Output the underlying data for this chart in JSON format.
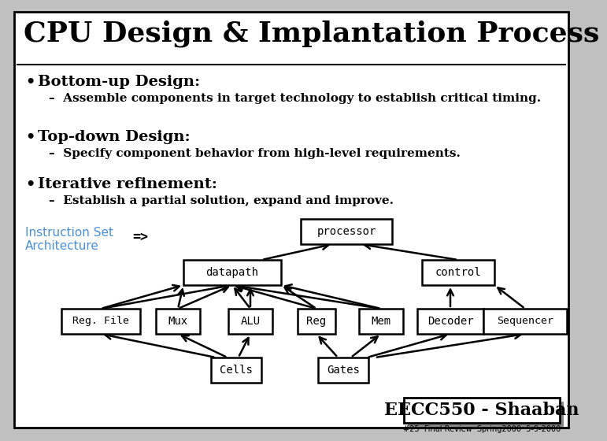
{
  "title": "CPU Design & Implantation Process",
  "bg_color": "#c0c0c0",
  "slide_bg": "#ffffff",
  "border_color": "#000000",
  "bullet_points": [
    {
      "bullet": "Bottom-up Design:",
      "sub": "Assemble components in target technology to establish critical timing."
    },
    {
      "bullet": "Top-down Design:",
      "sub": "Specify component behavior from high-level requirements."
    },
    {
      "bullet": "Iterative refinement:",
      "sub": "Establish a partial solution, expand and improve."
    }
  ],
  "isa_label": "Instruction Set\nArchitecture",
  "arrow_label": "=>",
  "isa_color": "#4a90d9",
  "node_labels": {
    "processor": "processor",
    "datapath": "datapath",
    "control": "control",
    "reg_file": "Reg. File",
    "mux": "Mux",
    "alu": "ALU",
    "reg": "Reg",
    "mem": "Mem",
    "decoder": "Decoder",
    "sequencer": "Sequencer",
    "cells": "Cells",
    "gates": "Gates"
  },
  "footer_text": "EECC550 - Shaaban",
  "footer_sub": "#25  Final Review  Spring2000  5-9-2000"
}
